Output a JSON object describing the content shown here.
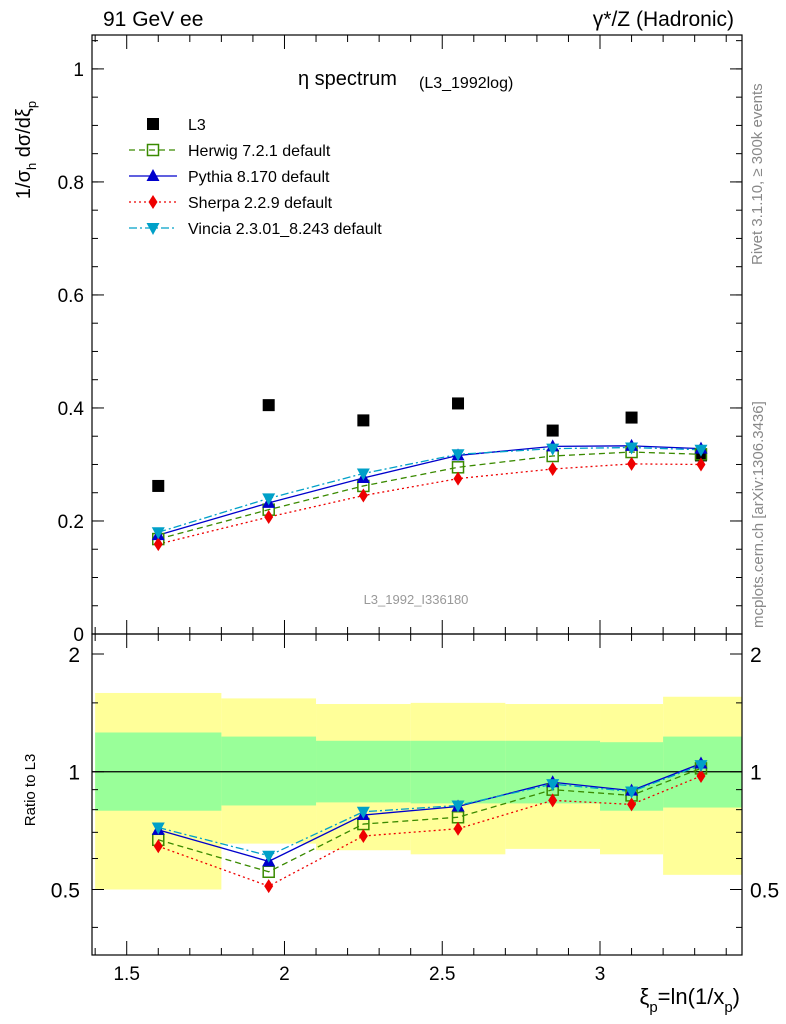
{
  "header": {
    "left": "91 GeV ee",
    "right": "γ*/Z (Hadronic)"
  },
  "side": {
    "rivet": "Rivet 3.1.10, ≥ 300k events",
    "mcplots": "mcplots.cern.ch [arXiv:1306.3436]"
  },
  "chart_data": [
    {
      "type": "scatter",
      "title": "η spectrum",
      "title_suffix": "(L3_1992log)",
      "watermark": "L3_1992_I336180",
      "ylabel": "1/σ_h dσ/dξ_p",
      "xlim": [
        1.39,
        3.45
      ],
      "ylim": [
        0,
        1.06
      ],
      "yticks": [
        0,
        0.2,
        0.4,
        0.6,
        0.8,
        1
      ],
      "ytick_labels": [
        "0",
        "0.2",
        "0.4",
        "0.6",
        "0.8",
        "1"
      ],
      "legend_placement": "top-left",
      "x": [
        1.6,
        1.95,
        2.25,
        2.55,
        2.85,
        3.1,
        3.32
      ],
      "series": [
        {
          "name": "L3",
          "marker": "square-filled",
          "color": "#000000",
          "line": "none",
          "values": [
            0.262,
            0.405,
            0.378,
            0.408,
            0.36,
            0.383,
            0.316
          ]
        },
        {
          "name": "Herwig 7.2.1 default",
          "marker": "square-open",
          "color": "#3a8a00",
          "line": "dashed",
          "values": [
            0.168,
            0.22,
            0.262,
            0.295,
            0.315,
            0.322,
            0.318
          ]
        },
        {
          "name": "Pythia 8.170 default",
          "marker": "triangle-up",
          "color": "#0000cc",
          "line": "solid",
          "values": [
            0.175,
            0.232,
            0.276,
            0.316,
            0.332,
            0.333,
            0.328
          ]
        },
        {
          "name": "Sherpa 2.2.9 default",
          "marker": "diamond",
          "color": "#ee0000",
          "line": "dotted",
          "values": [
            0.159,
            0.207,
            0.245,
            0.275,
            0.292,
            0.301,
            0.3
          ]
        },
        {
          "name": "Vincia 2.3.01_8.243 default",
          "marker": "triangle-down",
          "color": "#00a0c8",
          "line": "dashdot",
          "values": [
            0.18,
            0.24,
            0.284,
            0.318,
            0.328,
            0.33,
            0.326
          ]
        }
      ]
    },
    {
      "type": "scatter",
      "ylabel": "Ratio to L3",
      "xlabel": "ξ_p=ln(1/x_p)",
      "xlim": [
        1.39,
        3.45
      ],
      "ylim": [
        0.34,
        2.25
      ],
      "xticks": [
        1.5,
        2,
        2.5,
        3
      ],
      "xtick_labels": [
        "1.5",
        "2",
        "2.5",
        "3"
      ],
      "yticks": [
        0.5,
        1,
        2
      ],
      "ytick_labels": [
        "0.5",
        "1",
        "2"
      ],
      "bin_edges": [
        1.4,
        1.8,
        2.1,
        2.4,
        2.7,
        3.0,
        3.2,
        3.45
      ],
      "band_outer": {
        "color": "#ffff99",
        "lo": [
          0.5,
          0.655,
          0.63,
          0.615,
          0.635,
          0.615,
          0.545
        ],
        "hi": [
          1.59,
          1.54,
          1.49,
          1.5,
          1.49,
          1.49,
          1.555
        ]
      },
      "band_inner": {
        "color": "#99ff99",
        "lo": [
          0.795,
          0.82,
          0.835,
          0.83,
          0.83,
          0.795,
          0.81
        ],
        "hi": [
          1.26,
          1.23,
          1.2,
          1.2,
          1.2,
          1.19,
          1.23
        ]
      },
      "reference": 1,
      "x": [
        1.6,
        1.95,
        2.25,
        2.55,
        2.85,
        3.1,
        3.32
      ],
      "series": [
        {
          "name": "Herwig 7.2.1 default",
          "marker": "square-open",
          "color": "#3a8a00",
          "line": "dashed",
          "values": [
            0.67,
            0.555,
            0.735,
            0.765,
            0.9,
            0.87,
            1.02
          ]
        },
        {
          "name": "Pythia 8.170 default",
          "marker": "triangle-up",
          "color": "#0000cc",
          "line": "solid",
          "values": [
            0.71,
            0.59,
            0.775,
            0.815,
            0.94,
            0.895,
            1.05
          ]
        },
        {
          "name": "Sherpa 2.2.9 default",
          "marker": "diamond",
          "color": "#ee0000",
          "line": "dotted",
          "values": [
            0.645,
            0.51,
            0.685,
            0.715,
            0.845,
            0.825,
            0.975
          ]
        },
        {
          "name": "Vincia 2.3.01_8.243 default",
          "marker": "triangle-down",
          "color": "#00a0c8",
          "line": "dashdot",
          "values": [
            0.72,
            0.61,
            0.79,
            0.82,
            0.93,
            0.89,
            1.04
          ]
        }
      ]
    }
  ]
}
